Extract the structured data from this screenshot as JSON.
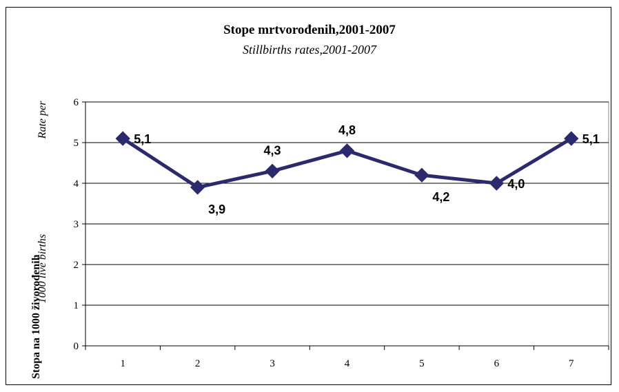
{
  "chart_data": {
    "type": "line",
    "title": "Stope mrtvorođenih,2001-2007",
    "subtitle": "Stillbirths rates,2001-2007",
    "ylabel_main": "Stopa na 1000 živorođenih",
    "ylabel_en_line1": "Rate per",
    "ylabel_en_line2": "1000 live births",
    "categories": [
      "1",
      "2",
      "3",
      "4",
      "5",
      "6",
      "7"
    ],
    "values": [
      5.1,
      3.9,
      4.3,
      4.8,
      4.2,
      4.0,
      5.1
    ],
    "data_labels": [
      "5,1",
      "3,9",
      "4,3",
      "4,8",
      "4,2",
      "4,0",
      "5,1"
    ],
    "y_ticks": [
      "0",
      "1",
      "2",
      "3",
      "4",
      "5",
      "6"
    ],
    "ylim": [
      0,
      6
    ],
    "grid": true,
    "legend": false,
    "marker": "diamond",
    "line_color": "#2b2a6e"
  }
}
